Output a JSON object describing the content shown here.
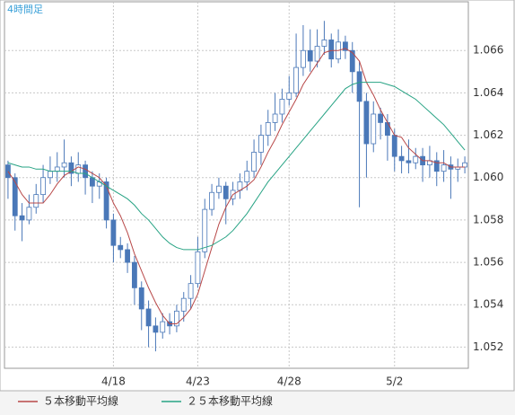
{
  "chart_data": {
    "type": "candlestick",
    "title": "4時間足",
    "categories": [
      null,
      null,
      null,
      null,
      null,
      null,
      null,
      null,
      null,
      null,
      null,
      null,
      null,
      null,
      null,
      "4/18",
      null,
      null,
      null,
      null,
      null,
      null,
      null,
      null,
      null,
      null,
      null,
      "4/23",
      null,
      null,
      null,
      null,
      null,
      null,
      null,
      null,
      null,
      null,
      null,
      null,
      "4/28",
      null,
      null,
      null,
      null,
      null,
      null,
      null,
      null,
      null,
      null,
      null,
      null,
      null,
      null,
      "5/2",
      null,
      null,
      null,
      null,
      null,
      null,
      null,
      null,
      null,
      null
    ],
    "open": [
      1.0606,
      1.06,
      1.0582,
      1.058,
      1.0586,
      1.0592,
      1.06,
      1.0603,
      1.0605,
      1.0607,
      1.0602,
      1.0606,
      1.06,
      1.0596,
      1.0598,
      1.058,
      1.0568,
      1.0566,
      1.056,
      1.0548,
      1.0538,
      1.053,
      1.0527,
      1.0532,
      1.053,
      1.0537,
      1.0543,
      1.055,
      1.0565,
      1.0585,
      1.0593,
      1.0596,
      1.059,
      1.0594,
      1.0598,
      1.0603,
      1.0612,
      1.062,
      1.0626,
      1.063,
      1.0637,
      1.064,
      1.0652,
      1.066,
      1.0655,
      1.0662,
      1.0665,
      1.0656,
      1.0664,
      1.066,
      1.065,
      1.0636,
      1.0616,
      1.063,
      1.0626,
      1.062,
      1.061,
      1.0608,
      1.0607,
      1.061,
      1.0606,
      1.0608,
      1.0603,
      1.0606,
      1.0604,
      1.0605
    ],
    "high": [
      1.0608,
      1.0602,
      1.0588,
      1.0592,
      1.0597,
      1.0606,
      1.061,
      1.0612,
      1.0618,
      1.061,
      1.0612,
      1.0608,
      1.0603,
      1.0602,
      1.06,
      1.0583,
      1.0572,
      1.0569,
      1.0563,
      1.0551,
      1.0542,
      1.0534,
      1.0536,
      1.0536,
      1.054,
      1.0546,
      1.0554,
      1.0572,
      1.059,
      1.0597,
      1.06,
      1.0598,
      1.0598,
      1.0602,
      1.0608,
      1.0618,
      1.0625,
      1.0632,
      1.064,
      1.0642,
      1.0648,
      1.0668,
      1.0672,
      1.067,
      1.067,
      1.0674,
      1.0668,
      1.067,
      1.0667,
      1.0664,
      1.0655,
      1.064,
      1.0636,
      1.0633,
      1.063,
      1.0623,
      1.0615,
      1.0618,
      1.0614,
      1.0614,
      1.0615,
      1.0612,
      1.0613,
      1.061,
      1.0609,
      1.061
    ],
    "low": [
      1.059,
      1.0575,
      1.057,
      1.0578,
      1.0583,
      1.0588,
      1.0597,
      1.0598,
      1.06,
      1.0596,
      1.0598,
      1.0592,
      1.0588,
      1.059,
      1.0576,
      1.056,
      1.0562,
      1.0555,
      1.054,
      1.0528,
      1.052,
      1.0518,
      1.0524,
      1.0526,
      1.0527,
      1.0532,
      1.0538,
      1.0548,
      1.0562,
      1.0582,
      1.059,
      1.0578,
      1.0587,
      1.059,
      1.0594,
      1.06,
      1.0606,
      1.0615,
      1.0622,
      1.0626,
      1.0634,
      1.0638,
      1.0648,
      1.065,
      1.0652,
      1.0658,
      1.0652,
      1.0654,
      1.0656,
      1.064,
      1.0586,
      1.06,
      1.0612,
      1.0618,
      1.0608,
      1.0603,
      1.0602,
      1.0602,
      1.0604,
      1.0598,
      1.06,
      1.0596,
      1.0598,
      1.059,
      1.0598,
      1.0602
    ],
    "close": [
      1.06,
      1.0582,
      1.058,
      1.0586,
      1.0592,
      1.06,
      1.0603,
      1.0605,
      1.0607,
      1.0602,
      1.0606,
      1.06,
      1.0596,
      1.0598,
      1.058,
      1.0568,
      1.0566,
      1.056,
      1.0548,
      1.0538,
      1.053,
      1.0527,
      1.0532,
      1.053,
      1.0537,
      1.0543,
      1.055,
      1.0565,
      1.0585,
      1.0593,
      1.0596,
      1.059,
      1.0594,
      1.0598,
      1.0603,
      1.0612,
      1.062,
      1.0626,
      1.063,
      1.0637,
      1.064,
      1.0652,
      1.066,
      1.0655,
      1.0662,
      1.0665,
      1.0656,
      1.0664,
      1.066,
      1.065,
      1.0636,
      1.0616,
      1.063,
      1.0626,
      1.062,
      1.061,
      1.0608,
      1.0607,
      1.061,
      1.0606,
      1.0608,
      1.0603,
      1.0606,
      1.0604,
      1.0605,
      1.0607
    ],
    "up_color": "#ffffff",
    "down_color": "#4a78b8",
    "edge_color": "#4a78b8",
    "series": [
      {
        "name": "５本移動平均線",
        "color": "#b84848",
        "values": [
          1.0603,
          1.0598,
          1.0592,
          1.0588,
          1.0588,
          1.0588,
          1.0592,
          1.0597,
          1.0601,
          1.0603,
          1.0605,
          1.0604,
          1.0602,
          1.06,
          1.0596,
          1.0588,
          1.0582,
          1.0574,
          1.0564,
          1.0556,
          1.0548,
          1.0541,
          1.0535,
          1.0531,
          1.0531,
          1.0534,
          1.0538,
          1.0545,
          1.0556,
          1.0567,
          1.0578,
          1.0586,
          1.0592,
          1.0594,
          1.0596,
          1.0599,
          1.0605,
          1.0612,
          1.0618,
          1.0625,
          1.0631,
          1.0637,
          1.0644,
          1.0649,
          1.0654,
          1.0659,
          1.066,
          1.066,
          1.0661,
          1.0659,
          1.0655,
          1.0645,
          1.0639,
          1.0632,
          1.0626,
          1.062,
          1.0619,
          1.0614,
          1.0611,
          1.0608,
          1.0608,
          1.0607,
          1.0607,
          1.0605,
          1.0605,
          1.0605
        ]
      },
      {
        "name": "２５本移動平均線",
        "color": "#27a384",
        "values": [
          1.0607,
          1.0606,
          1.0605,
          1.0605,
          1.0604,
          1.0604,
          1.0603,
          1.0603,
          1.0603,
          1.0603,
          1.0602,
          1.0602,
          1.06,
          1.0598,
          1.0596,
          1.0594,
          1.0592,
          1.059,
          1.0587,
          1.0583,
          1.058,
          1.0576,
          1.0572,
          1.0569,
          1.0567,
          1.0566,
          1.0566,
          1.0566,
          1.0567,
          1.0568,
          1.057,
          1.0572,
          1.0575,
          1.0579,
          1.0583,
          1.0588,
          1.0593,
          1.0598,
          1.0602,
          1.0606,
          1.061,
          1.0614,
          1.0618,
          1.0622,
          1.0626,
          1.063,
          1.0634,
          1.0638,
          1.0642,
          1.0644,
          1.0645,
          1.0645,
          1.0645,
          1.0645,
          1.0644,
          1.0643,
          1.0641,
          1.0639,
          1.0637,
          1.0634,
          1.0631,
          1.0628,
          1.0625,
          1.0621,
          1.0617,
          1.0613
        ]
      }
    ],
    "ylim": [
      1.051,
      1.0683
    ],
    "yticks": [
      1.052,
      1.054,
      1.056,
      1.058,
      {
        "value": 1.06,
        "label": "1.060"
      },
      1.062,
      1.064,
      1.066
    ],
    "grid": true
  }
}
